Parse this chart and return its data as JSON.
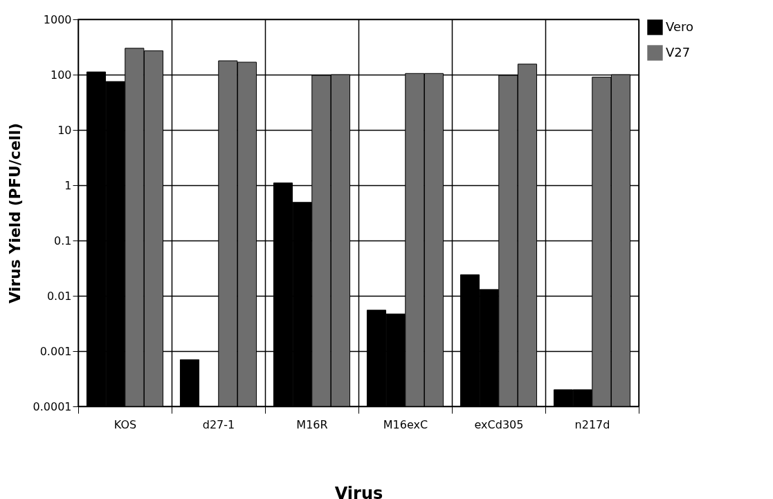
{
  "chart_data": {
    "type": "bar",
    "xlabel": "Virus",
    "ylabel": "Virus Yield (PFU/cell)",
    "categories": [
      "KOS",
      "d27-1",
      "M16R",
      "M16exC",
      "exCd305",
      "n217d"
    ],
    "series": [
      {
        "name": "Vero",
        "color": "#000000",
        "values": [
          112,
          0.0007,
          1.1,
          0.0055,
          0.024,
          0.0002
        ]
      },
      {
        "color": "#000000",
        "values": [
          75,
          null,
          0.49,
          0.0047,
          0.013,
          0.0002
        ]
      },
      {
        "name": "V27",
        "color": "#6e6e6e",
        "values": [
          300,
          178,
          97,
          105,
          97,
          90
        ]
      },
      {
        "color": "#6e6e6e",
        "values": [
          270,
          168,
          100,
          105,
          155,
          100
        ]
      }
    ],
    "log": true,
    "ylim": [
      0.0001,
      1000
    ],
    "yticks": [
      0.0001,
      0.001,
      0.01,
      0.1,
      1,
      10,
      100,
      1000
    ],
    "grid": true,
    "legend": "top right"
  }
}
